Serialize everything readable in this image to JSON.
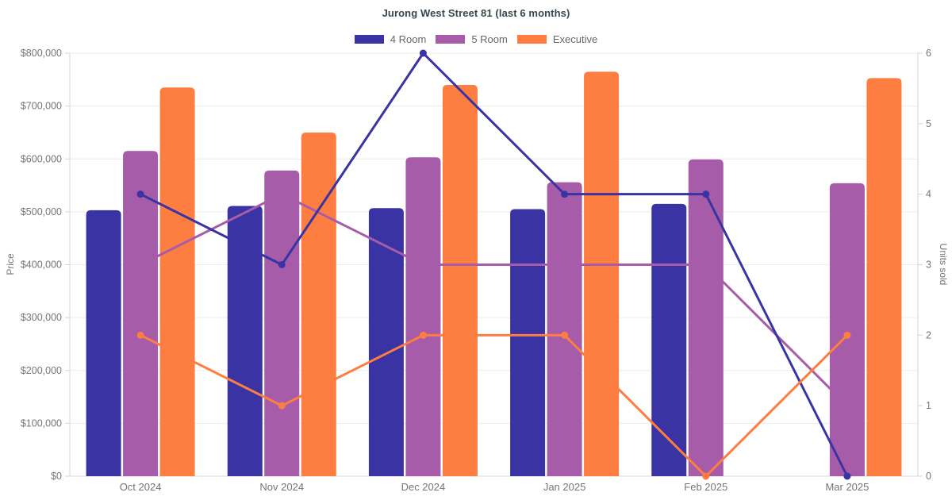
{
  "title": "Jurong West Street 81 (last 6 months)",
  "legend": [
    {
      "label": "4 Room",
      "color": "#3933A4"
    },
    {
      "label": "5 Room",
      "color": "#A65CA8"
    },
    {
      "label": "Executive",
      "color": "#FD7E40"
    }
  ],
  "chart_data": {
    "type": "bar+line",
    "title": "Jurong West Street 81 (last 6 months)",
    "categories": [
      "Oct 2024",
      "Nov 2024",
      "Dec 2024",
      "Jan 2025",
      "Feb 2025",
      "Mar 2025"
    ],
    "bar_series": [
      {
        "name": "4 Room",
        "color": "#3933A4",
        "axis": "price",
        "values": [
          503000,
          511000,
          507000,
          505000,
          515000,
          null
        ]
      },
      {
        "name": "5 Room",
        "color": "#A65CA8",
        "axis": "price",
        "values": [
          615000,
          578000,
          603000,
          556000,
          599000,
          554000
        ]
      },
      {
        "name": "Executive",
        "color": "#FD7E40",
        "axis": "price",
        "values": [
          735000,
          650000,
          740000,
          765000,
          null,
          753000
        ]
      }
    ],
    "line_series": [
      {
        "name": "4 Room",
        "color": "#3933A4",
        "axis": "units",
        "values": [
          4,
          3,
          6,
          4,
          4,
          0
        ]
      },
      {
        "name": "5 Room",
        "color": "#A65CA8",
        "axis": "units",
        "values": [
          3,
          4,
          3,
          3,
          3,
          1
        ]
      },
      {
        "name": "Executive",
        "color": "#FD7E40",
        "axis": "units",
        "values": [
          2,
          1,
          2,
          2,
          0,
          2
        ]
      }
    ],
    "y_left": {
      "label": "Price",
      "min": 0,
      "max": 800000,
      "step": 100000,
      "tick_prefix": "$",
      "tick_labels": [
        "$0",
        "$100,000",
        "$200,000",
        "$300,000",
        "$400,000",
        "$500,000",
        "$600,000",
        "$700,000",
        "$800,000"
      ]
    },
    "y_right": {
      "label": "Units sold",
      "min": 0,
      "max": 6,
      "step": 1,
      "tick_labels": [
        "0",
        "1",
        "2",
        "3",
        "4",
        "5",
        "6"
      ]
    },
    "grid": "horizontal",
    "legend_position": "top"
  }
}
